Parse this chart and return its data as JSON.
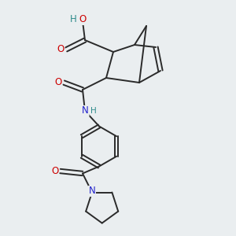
{
  "background_color": "#eaeef0",
  "bond_color": "#2a2a2a",
  "atom_colors": {
    "O": "#cc0000",
    "N": "#2222cc",
    "H": "#2e8b8b",
    "C": "#2a2a2a"
  },
  "figsize": [
    3.0,
    3.0
  ],
  "dpi": 100
}
